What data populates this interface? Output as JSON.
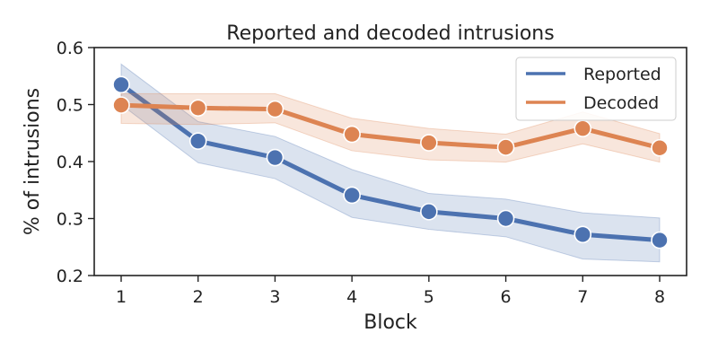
{
  "chart_data": {
    "type": "line",
    "title": "Reported and decoded intrusions",
    "xlabel": "Block",
    "ylabel": "% of intrusions",
    "x": [
      1,
      2,
      3,
      4,
      5,
      6,
      7,
      8
    ],
    "xlim": [
      0.65,
      8.35
    ],
    "ylim": [
      0.2,
      0.6
    ],
    "xticks": [
      "1",
      "2",
      "3",
      "4",
      "5",
      "6",
      "7",
      "8"
    ],
    "yticks": [
      "0.2",
      "0.3",
      "0.4",
      "0.5",
      "0.6"
    ],
    "grid": false,
    "legend_position": "top-right",
    "series": [
      {
        "name": "Reported",
        "color": "#4c72b0",
        "values": [
          0.535,
          0.436,
          0.407,
          0.341,
          0.312,
          0.3,
          0.272,
          0.262
        ],
        "ci_low": [
          0.5,
          0.398,
          0.37,
          0.302,
          0.281,
          0.268,
          0.229,
          0.224
        ],
        "ci_high": [
          0.571,
          0.47,
          0.444,
          0.386,
          0.344,
          0.334,
          0.31,
          0.301
        ]
      },
      {
        "name": "Decoded",
        "color": "#dd8452",
        "values": [
          0.499,
          0.494,
          0.492,
          0.448,
          0.433,
          0.425,
          0.458,
          0.424
        ],
        "ci_low": [
          0.467,
          0.465,
          0.468,
          0.419,
          0.403,
          0.399,
          0.431,
          0.399
        ],
        "ci_high": [
          0.519,
          0.519,
          0.519,
          0.476,
          0.458,
          0.448,
          0.487,
          0.449
        ]
      }
    ]
  }
}
